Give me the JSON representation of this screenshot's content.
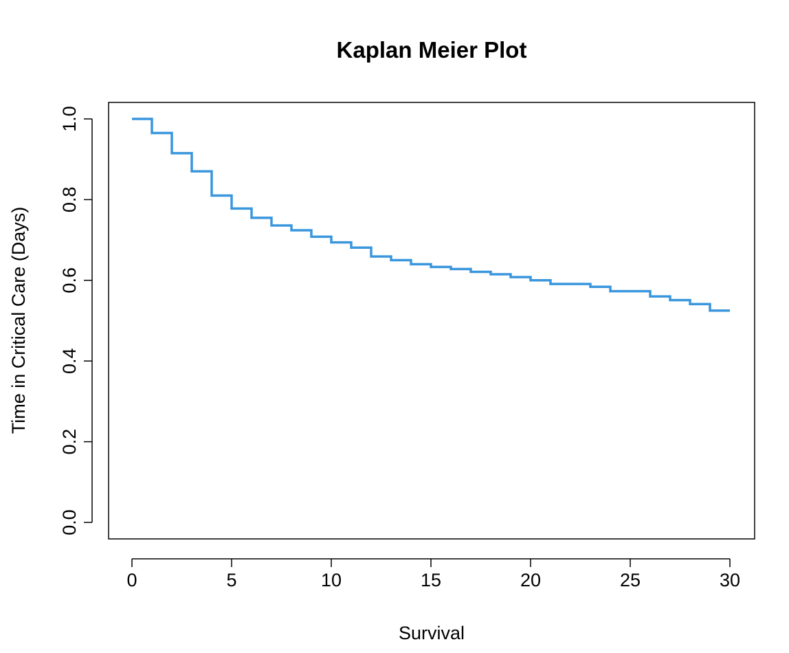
{
  "chart_data": {
    "type": "line",
    "subtype": "step",
    "title": "Kaplan Meier Plot",
    "xlabel": "Survival",
    "ylabel": "Time in Critical Care (Days)",
    "xlim": [
      0,
      30
    ],
    "ylim": [
      0,
      1
    ],
    "x_ticks": [
      0,
      5,
      10,
      15,
      20,
      25,
      30
    ],
    "x_tick_labels": [
      "0",
      "5",
      "10",
      "15",
      "20",
      "25",
      "30"
    ],
    "y_ticks": [
      0,
      0.2,
      0.4,
      0.6,
      0.8,
      1.0
    ],
    "y_tick_labels": [
      "0.0",
      "0.2",
      "0.4",
      "0.6",
      "0.8",
      "1.0"
    ],
    "grid": false,
    "legend": "none",
    "series": [
      {
        "color": "#3a96dd",
        "x": [
          0,
          1,
          2,
          3,
          4,
          5,
          6,
          7,
          8,
          9,
          10,
          11,
          12,
          13,
          14,
          15,
          16,
          17,
          18,
          19,
          20,
          21,
          22,
          23,
          24,
          25,
          26,
          27,
          28,
          29,
          30
        ],
        "y": [
          1.0,
          0.965,
          0.915,
          0.87,
          0.81,
          0.778,
          0.755,
          0.736,
          0.724,
          0.708,
          0.694,
          0.681,
          0.659,
          0.65,
          0.64,
          0.633,
          0.628,
          0.621,
          0.615,
          0.608,
          0.6,
          0.591,
          0.591,
          0.584,
          0.573,
          0.573,
          0.56,
          0.551,
          0.541,
          0.525,
          0.525
        ]
      }
    ]
  }
}
